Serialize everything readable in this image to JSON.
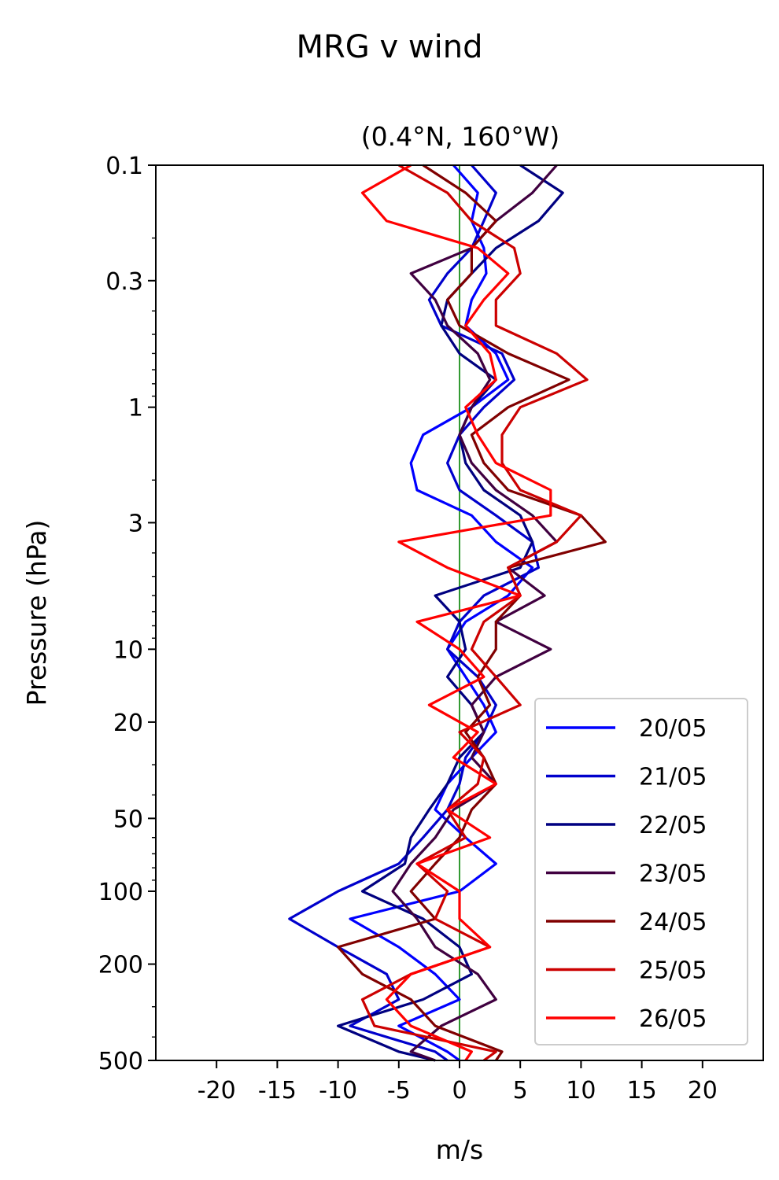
{
  "chart_data": {
    "type": "line",
    "title": "MRG v wind",
    "subtitle": "(0.4°N, 160°W)",
    "xlabel": "m/s",
    "ylabel": "Pressure (hPa)",
    "xlim": [
      -25,
      25
    ],
    "ylim": [
      500,
      0.1
    ],
    "y_scale": "log",
    "x_ticks": [
      -20,
      -15,
      -10,
      -5,
      0,
      5,
      10,
      15,
      20
    ],
    "x_tick_labels": [
      "-20",
      "-15",
      "-10",
      "-5",
      "0",
      "5",
      "10",
      "15",
      "20"
    ],
    "y_ticks": [
      0.1,
      0.3,
      1,
      3,
      10,
      20,
      50,
      100,
      200,
      500
    ],
    "y_tick_labels": [
      "0.1",
      "0.3",
      "1",
      "3",
      "10",
      "20",
      "50",
      "100",
      "200",
      "500"
    ],
    "zero_line_color": "#008000",
    "legend_position": "lower right",
    "pressure_levels": [
      0.1,
      0.13,
      0.17,
      0.22,
      0.28,
      0.36,
      0.46,
      0.6,
      0.77,
      1.0,
      1.3,
      1.7,
      2.2,
      2.8,
      3.6,
      4.6,
      6.0,
      7.7,
      10,
      13,
      17,
      22,
      28,
      36,
      46,
      60,
      77,
      100,
      130,
      170,
      220,
      280,
      360,
      460,
      500
    ],
    "series": [
      {
        "name": "20/05",
        "color": "#0000ff",
        "values": [
          -0.5,
          1.5,
          1.0,
          2.0,
          2.2,
          1.0,
          0.5,
          3.0,
          4.0,
          1.0,
          -3.0,
          -4.0,
          -3.5,
          1.0,
          3.0,
          6.0,
          4.0,
          0.5,
          -1.0,
          0.5,
          2.0,
          3.0,
          1.0,
          -1.0,
          -2.0,
          0.5,
          3.0,
          0.0,
          -9.0,
          -5.0,
          -2.0,
          0.0,
          -5.0,
          -1.0,
          0.0
        ]
      },
      {
        "name": "21/05",
        "color": "#0000cc",
        "values": [
          1.0,
          3.0,
          2.0,
          1.0,
          -1.0,
          -2.5,
          -1.5,
          3.5,
          4.5,
          2.0,
          0.0,
          -1.0,
          0.0,
          3.0,
          6.0,
          6.5,
          2.0,
          0.0,
          -1.0,
          1.5,
          3.0,
          2.0,
          0.5,
          0.0,
          -1.0,
          -3.0,
          -5.0,
          -10.0,
          -14.0,
          -10.0,
          -6.0,
          -5.0,
          -9.0,
          -2.0,
          -1.0
        ]
      },
      {
        "name": "22/05",
        "color": "#000080",
        "values": [
          5.0,
          8.5,
          6.5,
          3.0,
          1.0,
          -1.0,
          -1.5,
          0.0,
          3.0,
          1.0,
          0.0,
          0.5,
          2.0,
          5.0,
          6.0,
          5.0,
          -2.0,
          0.0,
          0.5,
          -1.0,
          1.0,
          2.0,
          0.0,
          -1.0,
          -2.5,
          -4.0,
          -4.5,
          -8.0,
          -3.0,
          0.0,
          1.0,
          -3.0,
          -10.0,
          -5.0,
          -2.0
        ]
      },
      {
        "name": "23/05",
        "color": "#400040",
        "values": [
          8.0,
          6.0,
          3.0,
          1.0,
          -4.0,
          -2.0,
          -1.0,
          1.5,
          2.5,
          1.0,
          0.0,
          1.0,
          3.0,
          6.0,
          8.0,
          4.0,
          7.0,
          3.0,
          7.5,
          3.0,
          1.0,
          2.0,
          1.0,
          3.0,
          -0.5,
          -2.0,
          -4.0,
          -5.5,
          -3.5,
          -2.0,
          1.5,
          3.0,
          -1.5,
          -4.0,
          -2.0
        ]
      },
      {
        "name": "24/05",
        "color": "#800000",
        "values": [
          -3.0,
          0.5,
          3.0,
          1.0,
          1.0,
          -1.0,
          0.0,
          4.0,
          9.0,
          4.0,
          1.0,
          2.0,
          4.0,
          10.0,
          12.0,
          4.0,
          5.0,
          3.0,
          3.0,
          1.5,
          2.5,
          0.5,
          2.0,
          3.0,
          1.0,
          0.0,
          -2.0,
          -4.0,
          -2.0,
          -10.0,
          -8.0,
          -4.0,
          -2.0,
          3.5,
          3.0
        ]
      },
      {
        "name": "25/05",
        "color": "#cc0000",
        "values": [
          -5.0,
          -1.0,
          1.0,
          4.5,
          5.0,
          3.0,
          3.0,
          8.0,
          10.5,
          5.0,
          3.5,
          3.5,
          5.0,
          10.0,
          8.0,
          4.0,
          5.0,
          2.0,
          1.0,
          3.0,
          5.0,
          0.0,
          2.0,
          1.5,
          -1.0,
          0.5,
          -3.5,
          -1.0,
          -2.0,
          2.5,
          -4.0,
          -8.0,
          -7.0,
          3.0,
          2.0
        ]
      },
      {
        "name": "26/05",
        "color": "#ff0000",
        "values": [
          -4.0,
          -8.0,
          -6.0,
          1.5,
          4.0,
          2.0,
          0.5,
          2.5,
          3.0,
          0.5,
          1.5,
          3.0,
          7.5,
          7.5,
          -5.0,
          -1.0,
          5.0,
          -3.5,
          0.0,
          2.0,
          -2.5,
          1.5,
          -0.5,
          3.0,
          -1.0,
          2.5,
          -3.5,
          0.0,
          0.0,
          2.5,
          -4.0,
          -6.0,
          -4.0,
          1.0,
          0.5
        ]
      }
    ]
  }
}
